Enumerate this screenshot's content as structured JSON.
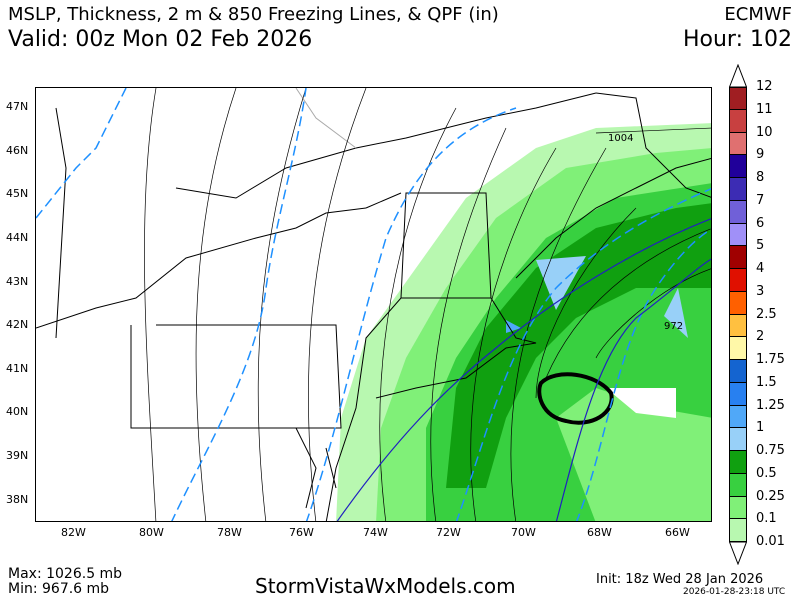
{
  "header": {
    "title": "MSLP, Thickness, 2 m & 850 Freezing Lines, & QPF (in)",
    "valid": "Valid: 00z Mon 02 Feb 2026",
    "model": "ECMWF",
    "hour": "Hour: 102"
  },
  "map": {
    "lat_labels": [
      "47N",
      "46N",
      "45N",
      "44N",
      "43N",
      "42N",
      "41N",
      "40N",
      "39N",
      "38N"
    ],
    "lon_labels": [
      "82W",
      "80W",
      "78W",
      "76W",
      "74W",
      "72W",
      "70W",
      "68W",
      "66W"
    ],
    "isobar_labels": [
      "1004",
      "972"
    ]
  },
  "colorbar": {
    "unit": "in",
    "labels": [
      "12",
      "11",
      "10",
      "9",
      "8",
      "7",
      "6",
      "5",
      "4",
      "3",
      "2.5",
      "2",
      "1.75",
      "1.5",
      "1.25",
      "1",
      "0.75",
      "0.5",
      "0.25",
      "0.1",
      "0.01"
    ],
    "colors": [
      "#a01e22",
      "#c84040",
      "#e07070",
      "#20009a",
      "#3c2cb4",
      "#7060d8",
      "#a090f8",
      "#a00000",
      "#e01000",
      "#ff6000",
      "#ffc040",
      "#fff8a8",
      "#1464d0",
      "#2880f0",
      "#50a8f8",
      "#98d0f8",
      "#10a010",
      "#38d040",
      "#80f078",
      "#b8f8b0"
    ]
  },
  "footer": {
    "max": "Max: 1026.5 mb",
    "min": "Min: 967.6 mb",
    "site": "StormVistaWxModels.com",
    "init": "Init: 18z Wed 28 Jan 2026",
    "timestamp": "2026-01-28-23:18 UTC"
  }
}
